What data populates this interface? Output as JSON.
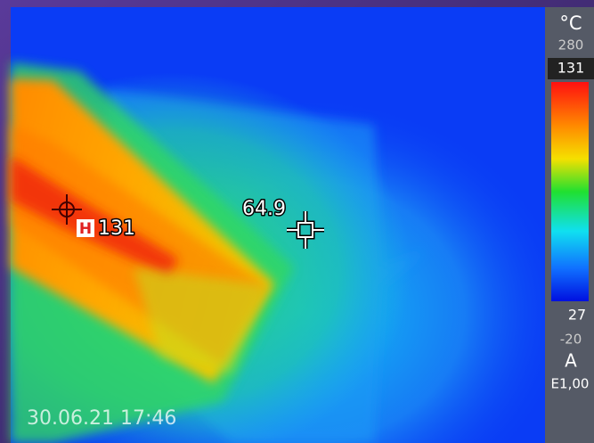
{
  "scale": {
    "unit": "°C",
    "max": "280",
    "span_top": "131",
    "span_bottom": "27",
    "min": "-20",
    "mode": "A",
    "emissivity": "E1,00"
  },
  "spot": {
    "value": "64.9"
  },
  "hotspot": {
    "label": "H",
    "value": "131"
  },
  "timestamp": "30.06.21 17:46"
}
